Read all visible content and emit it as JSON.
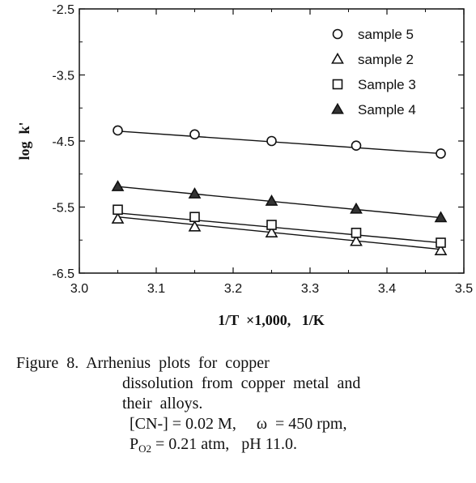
{
  "chart_data": {
    "type": "scatter",
    "xlabel": "1/T  ×1,000,   1/K",
    "ylabel": "log  k'",
    "xlim": [
      3.0,
      3.5
    ],
    "ylim": [
      -6.5,
      -2.5
    ],
    "x_ticks": [
      "3.0",
      "3.1",
      "3.2",
      "3.3",
      "3.4",
      "3.5"
    ],
    "y_ticks": [
      "-2.5",
      "-3.5",
      "-4.5",
      "-5.5",
      "-6.5"
    ],
    "grid": false,
    "legend_position": "top-right",
    "series": [
      {
        "name": "sample 5",
        "marker": "circle-open",
        "x": [
          3.05,
          3.15,
          3.25,
          3.36,
          3.47
        ],
        "y": [
          -4.34,
          -4.4,
          -4.5,
          -4.57,
          -4.69
        ],
        "fit": [
          [
            3.05,
            -4.35
          ],
          [
            3.47,
            -4.69
          ]
        ]
      },
      {
        "name": "sample 2",
        "marker": "triangle-open",
        "x": [
          3.05,
          3.15,
          3.25,
          3.36,
          3.47
        ],
        "y": [
          -5.68,
          -5.8,
          -5.89,
          -6.02,
          -6.16
        ],
        "fit": [
          [
            3.05,
            -5.65
          ],
          [
            3.47,
            -6.14
          ]
        ]
      },
      {
        "name": "Sample 3",
        "marker": "square-open",
        "x": [
          3.05,
          3.15,
          3.25,
          3.36,
          3.47
        ],
        "y": [
          -5.54,
          -5.65,
          -5.77,
          -5.89,
          -6.04
        ],
        "fit": [
          [
            3.05,
            -5.59
          ],
          [
            3.47,
            -6.04
          ]
        ]
      },
      {
        "name": "Sample 4",
        "marker": "triangle-filled",
        "x": [
          3.05,
          3.15,
          3.25,
          3.36,
          3.47
        ],
        "y": [
          -5.19,
          -5.3,
          -5.41,
          -5.53,
          -5.66
        ],
        "fit": [
          [
            3.05,
            -5.19
          ],
          [
            3.47,
            -5.66
          ]
        ]
      }
    ]
  },
  "caption": {
    "line1": "Figure  8.  Arrhenius  plots  for  copper",
    "line2": "dissolution  from  copper  metal  and",
    "line3": "their  alloys.",
    "line4": "[CN-] = 0.02 M,     ω  = 450 rpm,",
    "line5_pre": "P",
    "line5_sub": "O2",
    "line5_post": " = 0.21 atm,   pH 11.0."
  },
  "colors": {
    "ink": "#111111",
    "background": "#ffffff"
  }
}
